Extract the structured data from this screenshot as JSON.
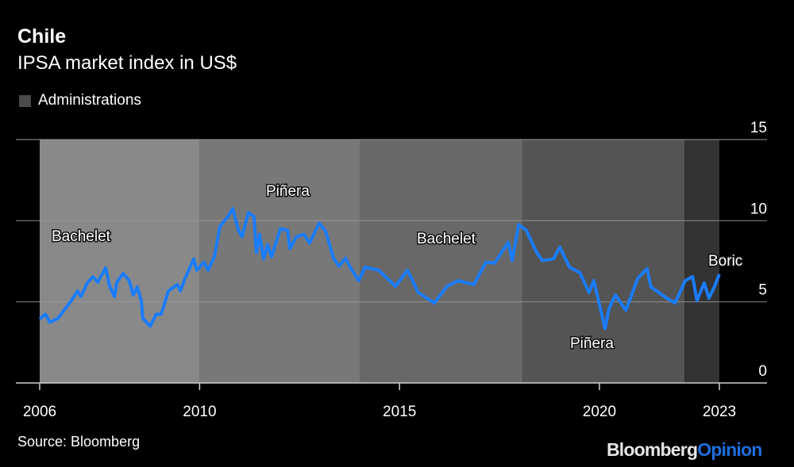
{
  "header": {
    "title": "Chile",
    "subtitle": "IPSA market index in US$"
  },
  "legend": {
    "label": "Administrations"
  },
  "footer": {
    "source": "Source: Bloomberg",
    "logo_part1": "Bloomberg",
    "logo_part2": "Opinion"
  },
  "chart_data": {
    "type": "line",
    "title": "Chile",
    "subtitle": "IPSA market index in US$",
    "xlabel": "",
    "ylabel": "",
    "xlim": [
      2006,
      2023
    ],
    "ylim": [
      0,
      15
    ],
    "x_ticks": [
      2006,
      2010,
      2015,
      2020,
      2023
    ],
    "x_tick_labels": [
      "2006",
      "2010",
      "2015",
      "2020",
      "2023"
    ],
    "y_ticks": [
      0,
      5,
      10,
      15
    ],
    "y_tick_labels": [
      "0",
      "5",
      "10",
      "15"
    ],
    "grid": true,
    "line_color": "#1a7cff",
    "administrations": [
      {
        "name": "Bachelet",
        "start": 2006.0,
        "end": 2010.0,
        "color": "#898989"
      },
      {
        "name": "Piñera",
        "start": 2010.0,
        "end": 2014.02,
        "color": "#787878"
      },
      {
        "name": "Bachelet",
        "start": 2014.02,
        "end": 2018.08,
        "color": "#686868"
      },
      {
        "name": "Piñera",
        "start": 2018.08,
        "end": 2022.13,
        "color": "#545454"
      },
      {
        "name": "Boric",
        "start": 2022.13,
        "end": 2023.0,
        "color": "#333333"
      }
    ],
    "series": [
      {
        "name": "IPSA (US$)",
        "points": [
          [
            2006.0,
            3.94
          ],
          [
            2006.14,
            4.24
          ],
          [
            2006.26,
            3.74
          ],
          [
            2006.46,
            3.99
          ],
          [
            2006.79,
            5.07
          ],
          [
            2006.95,
            5.67
          ],
          [
            2007.03,
            5.32
          ],
          [
            2007.19,
            6.16
          ],
          [
            2007.33,
            6.55
          ],
          [
            2007.45,
            6.21
          ],
          [
            2007.65,
            7.09
          ],
          [
            2007.75,
            5.96
          ],
          [
            2007.87,
            5.32
          ],
          [
            2007.93,
            6.21
          ],
          [
            2008.09,
            6.75
          ],
          [
            2008.24,
            6.31
          ],
          [
            2008.34,
            5.42
          ],
          [
            2008.44,
            5.91
          ],
          [
            2008.54,
            5.07
          ],
          [
            2008.58,
            3.99
          ],
          [
            2008.76,
            3.5
          ],
          [
            2008.92,
            4.24
          ],
          [
            2009.04,
            4.24
          ],
          [
            2009.22,
            5.67
          ],
          [
            2009.44,
            6.06
          ],
          [
            2009.52,
            5.67
          ],
          [
            2009.63,
            6.4
          ],
          [
            2009.85,
            7.64
          ],
          [
            2009.93,
            6.95
          ],
          [
            2010.11,
            7.44
          ],
          [
            2010.21,
            6.95
          ],
          [
            2010.37,
            7.78
          ],
          [
            2010.51,
            9.66
          ],
          [
            2010.71,
            10.25
          ],
          [
            2010.83,
            10.74
          ],
          [
            2010.97,
            9.41
          ],
          [
            2011.06,
            9.01
          ],
          [
            2011.22,
            10.49
          ],
          [
            2011.36,
            10.25
          ],
          [
            2011.42,
            8.03
          ],
          [
            2011.5,
            9.16
          ],
          [
            2011.6,
            7.64
          ],
          [
            2011.7,
            8.52
          ],
          [
            2011.8,
            7.78
          ],
          [
            2012.02,
            9.51
          ],
          [
            2012.2,
            9.41
          ],
          [
            2012.26,
            8.28
          ],
          [
            2012.42,
            9.01
          ],
          [
            2012.61,
            9.16
          ],
          [
            2012.75,
            8.62
          ],
          [
            2012.99,
            9.85
          ],
          [
            2013.15,
            9.36
          ],
          [
            2013.35,
            7.68
          ],
          [
            2013.49,
            7.19
          ],
          [
            2013.65,
            7.68
          ],
          [
            2013.79,
            7.04
          ],
          [
            2013.98,
            6.31
          ],
          [
            2014.14,
            7.14
          ],
          [
            2014.48,
            6.95
          ],
          [
            2014.9,
            5.96
          ],
          [
            2015.2,
            6.95
          ],
          [
            2015.47,
            5.57
          ],
          [
            2015.87,
            4.93
          ],
          [
            2016.19,
            5.96
          ],
          [
            2016.47,
            6.31
          ],
          [
            2016.86,
            6.06
          ],
          [
            2017.16,
            7.44
          ],
          [
            2017.38,
            7.39
          ],
          [
            2017.72,
            8.67
          ],
          [
            2017.82,
            7.54
          ],
          [
            2017.98,
            9.75
          ],
          [
            2018.17,
            9.41
          ],
          [
            2018.41,
            8.13
          ],
          [
            2018.57,
            7.54
          ],
          [
            2018.85,
            7.64
          ],
          [
            2019.01,
            8.37
          ],
          [
            2019.25,
            7.14
          ],
          [
            2019.51,
            6.8
          ],
          [
            2019.74,
            5.57
          ],
          [
            2019.86,
            6.31
          ],
          [
            2020.14,
            3.35
          ],
          [
            2020.24,
            4.58
          ],
          [
            2020.4,
            5.42
          ],
          [
            2020.66,
            4.48
          ],
          [
            2020.96,
            6.45
          ],
          [
            2021.19,
            7.04
          ],
          [
            2021.29,
            5.91
          ],
          [
            2021.69,
            5.22
          ],
          [
            2021.89,
            4.93
          ],
          [
            2022.15,
            6.31
          ],
          [
            2022.33,
            6.55
          ],
          [
            2022.44,
            5.07
          ],
          [
            2022.62,
            6.16
          ],
          [
            2022.74,
            5.22
          ],
          [
            2022.88,
            5.96
          ],
          [
            2023.0,
            6.7
          ]
        ]
      }
    ],
    "annotations": [
      "Bachelet",
      "Piñera",
      "Bachelet",
      "Piñera",
      "Boric"
    ]
  }
}
